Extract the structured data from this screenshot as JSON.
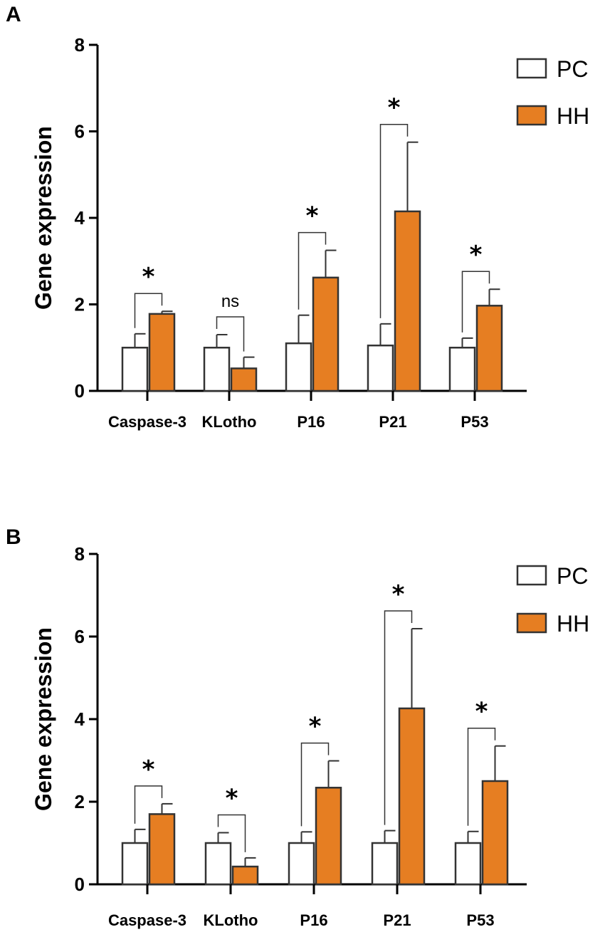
{
  "chart_data": [
    {
      "panel": "A",
      "type": "bar",
      "ylabel": "Gene expression",
      "ylim": [
        0,
        8
      ],
      "yticks": [
        "0",
        "2",
        "4",
        "6",
        "8"
      ],
      "categories": [
        "Caspase-3",
        "KLotho",
        "P16",
        "P21",
        "P53"
      ],
      "series": [
        {
          "name": "PC",
          "color": "#ffffff",
          "values": [
            1.0,
            1.0,
            1.1,
            1.05,
            1.0
          ],
          "errors": [
            0.32,
            0.3,
            0.65,
            0.5,
            0.22
          ]
        },
        {
          "name": "HH",
          "color": "#e67e22",
          "values": [
            1.78,
            0.52,
            2.62,
            4.15,
            1.97
          ],
          "errors": [
            0.06,
            0.26,
            0.63,
            1.6,
            0.38
          ]
        }
      ],
      "significance": [
        "*",
        "ns",
        "*",
        "*",
        "*"
      ],
      "legend": [
        "PC",
        "HH"
      ]
    },
    {
      "panel": "B",
      "type": "bar",
      "ylabel": "Gene expression",
      "ylim": [
        0,
        8
      ],
      "yticks": [
        "0",
        "2",
        "4",
        "6",
        "8"
      ],
      "categories": [
        "Caspase-3",
        "KLotho",
        "P16",
        "P21",
        "P53"
      ],
      "series": [
        {
          "name": "PC",
          "color": "#ffffff",
          "values": [
            1.0,
            1.0,
            1.0,
            1.0,
            1.0
          ],
          "errors": [
            0.33,
            0.25,
            0.27,
            0.3,
            0.28
          ]
        },
        {
          "name": "HH",
          "color": "#e67e22",
          "values": [
            1.7,
            0.43,
            2.34,
            4.26,
            2.5
          ],
          "errors": [
            0.25,
            0.21,
            0.65,
            1.93,
            0.85
          ]
        }
      ],
      "significance": [
        "*",
        "*",
        "*",
        "*",
        "*"
      ],
      "legend": [
        "PC",
        "HH"
      ]
    }
  ]
}
